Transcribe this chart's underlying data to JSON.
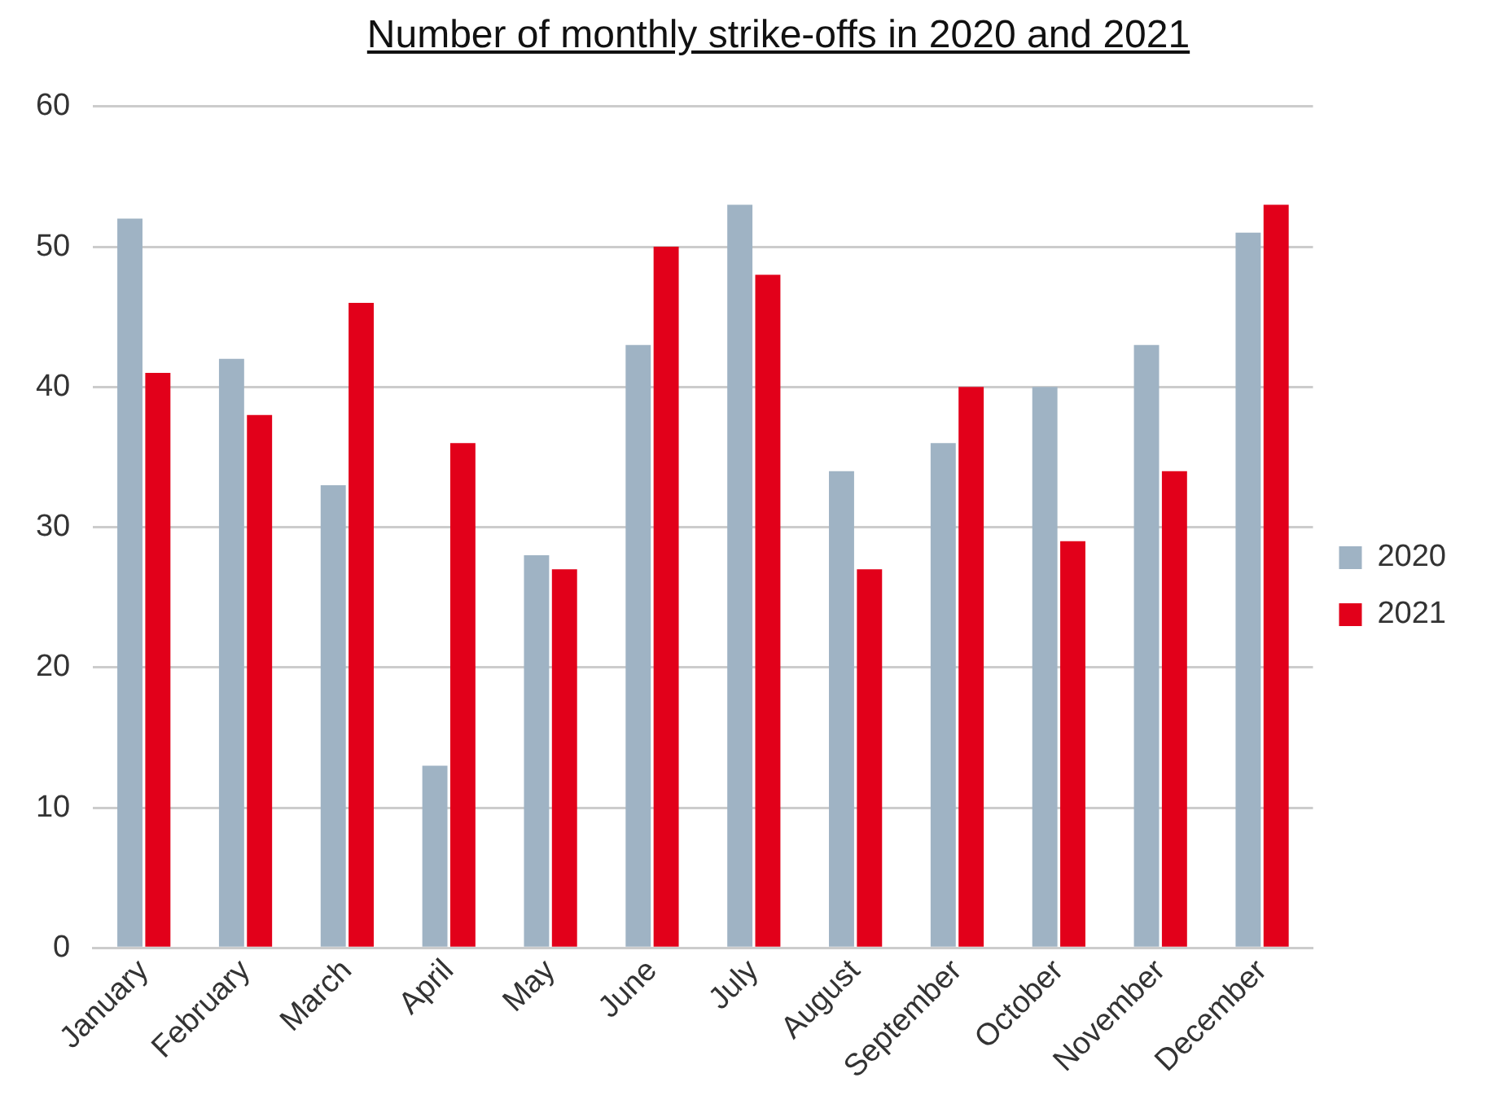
{
  "chart_data": {
    "type": "bar",
    "title": "Number of monthly strike-offs in 2020 and 2021",
    "categories": [
      "January",
      "February",
      "March",
      "April",
      "May",
      "June",
      "July",
      "August",
      "September",
      "October",
      "November",
      "December"
    ],
    "series": [
      {
        "name": "2020",
        "color": "#9fb3c4",
        "values": [
          52,
          42,
          33,
          13,
          28,
          43,
          53,
          34,
          36,
          40,
          43,
          51
        ]
      },
      {
        "name": "2021",
        "color": "#e2001a",
        "values": [
          41,
          38,
          46,
          36,
          27,
          50,
          48,
          27,
          40,
          29,
          34,
          53
        ]
      }
    ],
    "ylim": [
      0,
      60
    ],
    "yticks": [
      0,
      10,
      20,
      30,
      40,
      50,
      60
    ],
    "grid": "y",
    "legend": "right"
  }
}
